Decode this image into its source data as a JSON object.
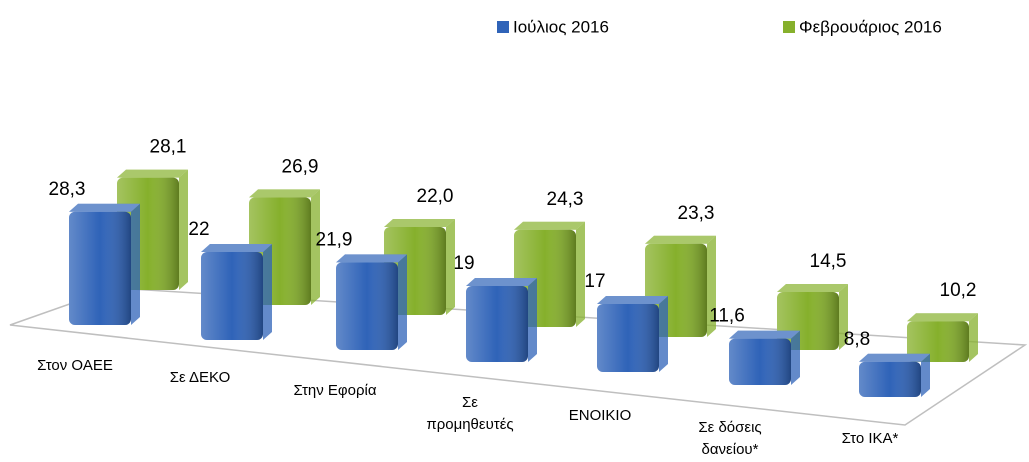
{
  "chart_data": {
    "type": "bar3d",
    "categories": [
      "Στον ΟΑΕΕ",
      "Σε ΔΕΚΟ",
      "Στην Εφορία",
      "Σε προμηθευτές",
      "ΕΝΟΙΚΙΟ",
      "Σε δόσεις δανείου*",
      "Στο ΙΚΑ*"
    ],
    "series": [
      {
        "name": "Ιούλιος 2016",
        "color": "#2f63b8",
        "values": [
          28.3,
          22,
          21.9,
          19,
          17,
          11.6,
          8.8
        ],
        "value_labels": [
          "28,3",
          "22",
          "21,9",
          "19",
          "17",
          "11,6",
          "8,8"
        ]
      },
      {
        "name": "Φεβρουάριος 2016",
        "color": "#86b02c",
        "values": [
          28.1,
          26.9,
          22.0,
          24.3,
          23.3,
          14.5,
          10.2
        ],
        "value_labels": [
          "28,1",
          "26,9",
          "22,0",
          "24,3",
          "23,3",
          "14,5",
          "10,2"
        ]
      }
    ],
    "legend": "top-right"
  }
}
